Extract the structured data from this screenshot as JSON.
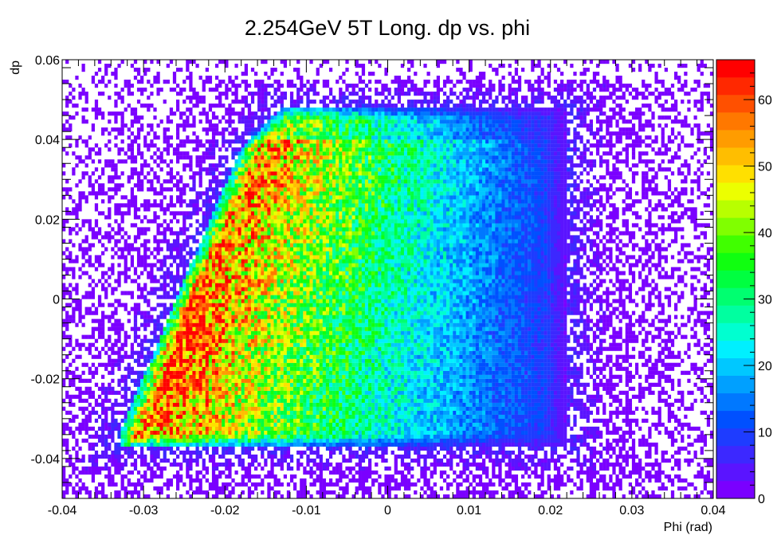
{
  "chart_data": {
    "type": "heatmap",
    "title": "2.254GeV 5T Long. dp vs. phi",
    "xlabel": "Phi (rad)",
    "ylabel": "dp",
    "xlim": [
      -0.04,
      0.04
    ],
    "ylim": [
      -0.05,
      0.06
    ],
    "x_ticks": [
      "-0.04",
      "-0.03",
      "-0.02",
      "-0.01",
      "0",
      "0.01",
      "0.02",
      "0.03",
      "0.04"
    ],
    "x_tick_values": [
      -0.04,
      -0.03,
      -0.02,
      -0.01,
      0,
      0.01,
      0.02,
      0.03,
      0.04
    ],
    "y_ticks": [
      "-0.04",
      "-0.02",
      "0",
      "0.02",
      "0.04",
      "0.06"
    ],
    "y_tick_values": [
      -0.04,
      -0.02,
      0,
      0.02,
      0.04,
      0.06
    ],
    "colorbar": {
      "range": [
        0,
        66
      ],
      "ticks": [
        "0",
        "10",
        "20",
        "30",
        "40",
        "50",
        "60"
      ],
      "tick_values": [
        0,
        10,
        20,
        30,
        40,
        50,
        60
      ],
      "palette": [
        "#7a00ff",
        "#5a14ff",
        "#3c28ff",
        "#1e3cff",
        "#0050ff",
        "#0078ff",
        "#00a0ff",
        "#00c8ff",
        "#00f0ff",
        "#00ffd0",
        "#00ffa0",
        "#00ff70",
        "#00ff40",
        "#10ff10",
        "#40ff00",
        "#80ff00",
        "#b8ff00",
        "#ecff00",
        "#ffe000",
        "#ffbe00",
        "#ff9c00",
        "#ff7800",
        "#ff5000",
        "#ff2800",
        "#ff0000"
      ]
    },
    "density_model": {
      "core_region": {
        "x_range": [
          -0.033,
          0.022
        ],
        "y_range": [
          -0.037,
          0.048
        ],
        "left_edge": [
          [
            -0.033,
            -0.034
          ],
          [
            -0.026,
            0.0
          ],
          [
            -0.018,
            0.038
          ],
          [
            -0.013,
            0.048
          ]
        ]
      },
      "peak": {
        "x": -0.026,
        "y": -0.005,
        "count": 66
      },
      "core_count_at_right_edge": 8,
      "background_count": 1
    }
  }
}
